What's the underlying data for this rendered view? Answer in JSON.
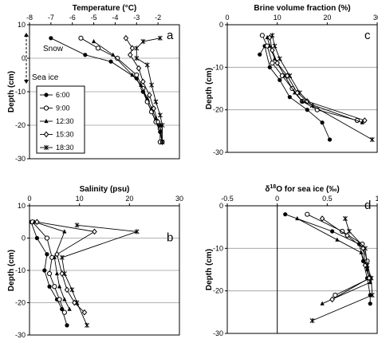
{
  "legend": [
    {
      "name": "6:00",
      "marker": "dot"
    },
    {
      "name": "9:00",
      "marker": "circle"
    },
    {
      "name": "12:30",
      "marker": "triangle"
    },
    {
      "name": "15:30",
      "marker": "diamond"
    },
    {
      "name": "18:30",
      "marker": "star"
    }
  ],
  "annotations": {
    "snow": "Snow",
    "sea_ice": "Sea ice"
  },
  "chart_data": [
    {
      "type": "line",
      "panel": "a",
      "title": "Temperature (°C)",
      "ylabel": "Depth (cm)",
      "xlim": [
        -8,
        -1
      ],
      "ylim": [
        -30,
        10
      ],
      "x_ticks": [
        -8,
        -7,
        -6,
        -5,
        -4,
        -3,
        -2
      ],
      "y_ticks": [
        -30,
        -20,
        -10,
        0,
        10
      ],
      "x_axis": "top",
      "gridlines": [
        -20,
        -10,
        0
      ],
      "series": [
        {
          "name": "6:00",
          "points": [
            [
              -7.0,
              6
            ],
            [
              -5.4,
              1
            ],
            [
              -4.2,
              -1
            ],
            [
              -3.0,
              -6
            ],
            [
              -2.7,
              -10
            ],
            [
              -2.5,
              -13
            ],
            [
              -2.3,
              -16
            ],
            [
              -2.1,
              -19
            ],
            [
              -1.9,
              -22
            ],
            [
              -1.8,
              -25
            ]
          ]
        },
        {
          "name": "9:00",
          "points": [
            [
              -5.6,
              6
            ],
            [
              -4.8,
              3
            ],
            [
              -3.9,
              0
            ],
            [
              -3.0,
              -5
            ],
            [
              -2.7,
              -9
            ],
            [
              -2.5,
              -13
            ],
            [
              -2.3,
              -16
            ],
            [
              -2.1,
              -19
            ],
            [
              -1.9,
              -21
            ],
            [
              -1.9,
              -25
            ]
          ]
        },
        {
          "name": "12:30",
          "points": [
            [
              -5.0,
              5
            ],
            [
              -4.1,
              1
            ],
            [
              -3.2,
              -5
            ],
            [
              -2.8,
              -8
            ],
            [
              -2.5,
              -12
            ],
            [
              -2.3,
              -15
            ],
            [
              -2.1,
              -18
            ],
            [
              -1.9,
              -20
            ],
            [
              -1.8,
              -25
            ]
          ]
        },
        {
          "name": "15:30",
          "points": [
            [
              -3.5,
              6
            ],
            [
              -3.2,
              3
            ],
            [
              -3.3,
              1
            ],
            [
              -2.9,
              -3
            ],
            [
              -2.7,
              -7
            ],
            [
              -2.4,
              -11
            ],
            [
              -2.2,
              -15
            ],
            [
              -2.0,
              -19
            ],
            [
              -1.8,
              -25
            ]
          ]
        },
        {
          "name": "18:30",
          "points": [
            [
              -1.9,
              6
            ],
            [
              -2.7,
              5
            ],
            [
              -3.0,
              3
            ],
            [
              -3.0,
              0
            ],
            [
              -2.5,
              -2
            ],
            [
              -2.3,
              -8
            ],
            [
              -2.1,
              -13
            ],
            [
              -1.9,
              -17
            ],
            [
              -1.8,
              -20
            ],
            [
              -1.8,
              -25
            ]
          ]
        }
      ]
    },
    {
      "type": "line",
      "panel": "c",
      "title": "Brine volume fraction (%)",
      "ylabel": "Depth (cm)",
      "xlim": [
        0,
        30
      ],
      "ylim": [
        -30,
        0
      ],
      "x_ticks": [
        0,
        10,
        20,
        30
      ],
      "y_ticks": [
        -30,
        -20,
        -10,
        0
      ],
      "x_axis": "top",
      "gridlines": [
        -20,
        -10
      ],
      "series": [
        {
          "name": "6:00",
          "points": [
            [
              6.5,
              -7
            ],
            [
              7.5,
              -5
            ],
            [
              8.5,
              -10
            ],
            [
              10.5,
              -13
            ],
            [
              12.5,
              -17
            ],
            [
              16,
              -20
            ],
            [
              19,
              -23
            ],
            [
              20.5,
              -27
            ]
          ]
        },
        {
          "name": "9:00",
          "points": [
            [
              7,
              -2.5
            ],
            [
              8,
              -5
            ],
            [
              9,
              -9
            ],
            [
              11,
              -12
            ],
            [
              13,
              -15
            ],
            [
              15,
              -18
            ],
            [
              18,
              -20
            ],
            [
              26,
              -22.5
            ]
          ]
        },
        {
          "name": "12:30",
          "points": [
            [
              8,
              -3
            ],
            [
              8.5,
              -5
            ],
            [
              9.5,
              -8
            ],
            [
              11.5,
              -12
            ],
            [
              13.5,
              -16
            ],
            [
              15,
              -18
            ],
            [
              27,
              -23
            ]
          ]
        },
        {
          "name": "15:30",
          "points": [
            [
              8.5,
              -3
            ],
            [
              9,
              -6
            ],
            [
              10,
              -9
            ],
            [
              12,
              -12
            ],
            [
              14,
              -16
            ],
            [
              16,
              -18
            ],
            [
              27.5,
              -22.5
            ]
          ]
        },
        {
          "name": "18:30",
          "points": [
            [
              9,
              -2.5
            ],
            [
              9.5,
              -5
            ],
            [
              10.5,
              -8
            ],
            [
              12.5,
              -12
            ],
            [
              14.5,
              -16
            ],
            [
              17,
              -19
            ],
            [
              29,
              -27
            ]
          ]
        }
      ]
    },
    {
      "type": "line",
      "panel": "b",
      "title": "Salinity (psu)",
      "ylabel": "Depth (cm)",
      "xlim": [
        0,
        30
      ],
      "ylim": [
        -30,
        10
      ],
      "x_ticks": [
        0,
        10,
        20,
        30
      ],
      "y_ticks": [
        -30,
        -20,
        -10,
        0,
        10
      ],
      "x_axis": "top",
      "gridlines": [
        -20,
        -10,
        0
      ],
      "series": [
        {
          "name": "6:00",
          "points": [
            [
              0.3,
              5
            ],
            [
              1.5,
              0
            ],
            [
              3.5,
              -5
            ],
            [
              3.0,
              -10
            ],
            [
              4.0,
              -15
            ],
            [
              5.5,
              -19
            ],
            [
              6.5,
              -22
            ],
            [
              7.5,
              -27
            ]
          ]
        },
        {
          "name": "9:00",
          "points": [
            [
              0.6,
              5
            ],
            [
              3.5,
              0
            ],
            [
              4.5,
              -6
            ],
            [
              4.0,
              -11
            ],
            [
              5.0,
              -15
            ],
            [
              6.0,
              -19
            ],
            [
              7.0,
              -23
            ]
          ]
        },
        {
          "name": "12:30",
          "points": [
            [
              1.0,
              5
            ],
            [
              7.0,
              2
            ],
            [
              5.0,
              -6
            ],
            [
              5.5,
              -11
            ],
            [
              6.0,
              -15
            ],
            [
              7.0,
              -19
            ],
            [
              8.0,
              -22
            ]
          ]
        },
        {
          "name": "15:30",
          "points": [
            [
              1.5,
              5
            ],
            [
              13.0,
              2
            ],
            [
              5.5,
              -5
            ],
            [
              6.5,
              -11
            ],
            [
              7.5,
              -16
            ],
            [
              9.0,
              -20
            ],
            [
              11.0,
              -23
            ]
          ]
        },
        {
          "name": "18:30",
          "points": [
            [
              9.5,
              4
            ],
            [
              21.5,
              2
            ],
            [
              6.5,
              -6
            ],
            [
              7.0,
              -11
            ],
            [
              8.5,
              -16
            ],
            [
              9.5,
              -20
            ],
            [
              11.5,
              -27
            ]
          ]
        }
      ]
    },
    {
      "type": "line",
      "panel": "d",
      "title": "δ18O for sea ice (‰)",
      "title_main": "δ",
      "title_sup": "18",
      "title_rest": "O for sea ice (‰)",
      "ylabel": "Depth (cm)",
      "xlim": [
        -0.5,
        1.0
      ],
      "ylim": [
        -30,
        0
      ],
      "x_ticks": [
        -0.5,
        0,
        0.5,
        1
      ],
      "x_tick_labels": [
        "-0.5",
        "0",
        "0.5",
        "1"
      ],
      "y_ticks": [
        -30,
        -20,
        -10,
        0
      ],
      "x_axis": "top",
      "gridlines": [
        -20,
        -10
      ],
      "series": [
        {
          "name": "6:00",
          "points": [
            [
              0.08,
              -2
            ],
            [
              0.55,
              -6
            ],
            [
              0.82,
              -9
            ],
            [
              0.86,
              -13
            ],
            [
              0.9,
              -17
            ],
            [
              0.93,
              -21
            ],
            [
              0.93,
              -23
            ]
          ]
        },
        {
          "name": "9:00",
          "points": [
            [
              0.3,
              -2
            ],
            [
              0.65,
              -6
            ],
            [
              0.85,
              -9
            ],
            [
              0.9,
              -13
            ],
            [
              0.93,
              -17
            ],
            [
              0.58,
              -21
            ]
          ]
        },
        {
          "name": "12:30",
          "points": [
            [
              0.2,
              -3
            ],
            [
              0.6,
              -8
            ],
            [
              0.84,
              -11
            ],
            [
              0.9,
              -15
            ],
            [
              0.93,
              -18
            ],
            [
              0.45,
              -23
            ]
          ]
        },
        {
          "name": "15:30",
          "points": [
            [
              0.45,
              -3
            ],
            [
              0.7,
              -7
            ],
            [
              0.86,
              -10
            ],
            [
              0.88,
              -14
            ],
            [
              0.92,
              -17
            ],
            [
              0.55,
              -22
            ]
          ]
        },
        {
          "name": "18:30",
          "points": [
            [
              0.68,
              -3
            ],
            [
              0.72,
              -6
            ],
            [
              0.88,
              -10
            ],
            [
              0.9,
              -14
            ],
            [
              0.94,
              -17
            ],
            [
              0.95,
              -21
            ],
            [
              0.35,
              -27
            ]
          ]
        }
      ]
    }
  ]
}
